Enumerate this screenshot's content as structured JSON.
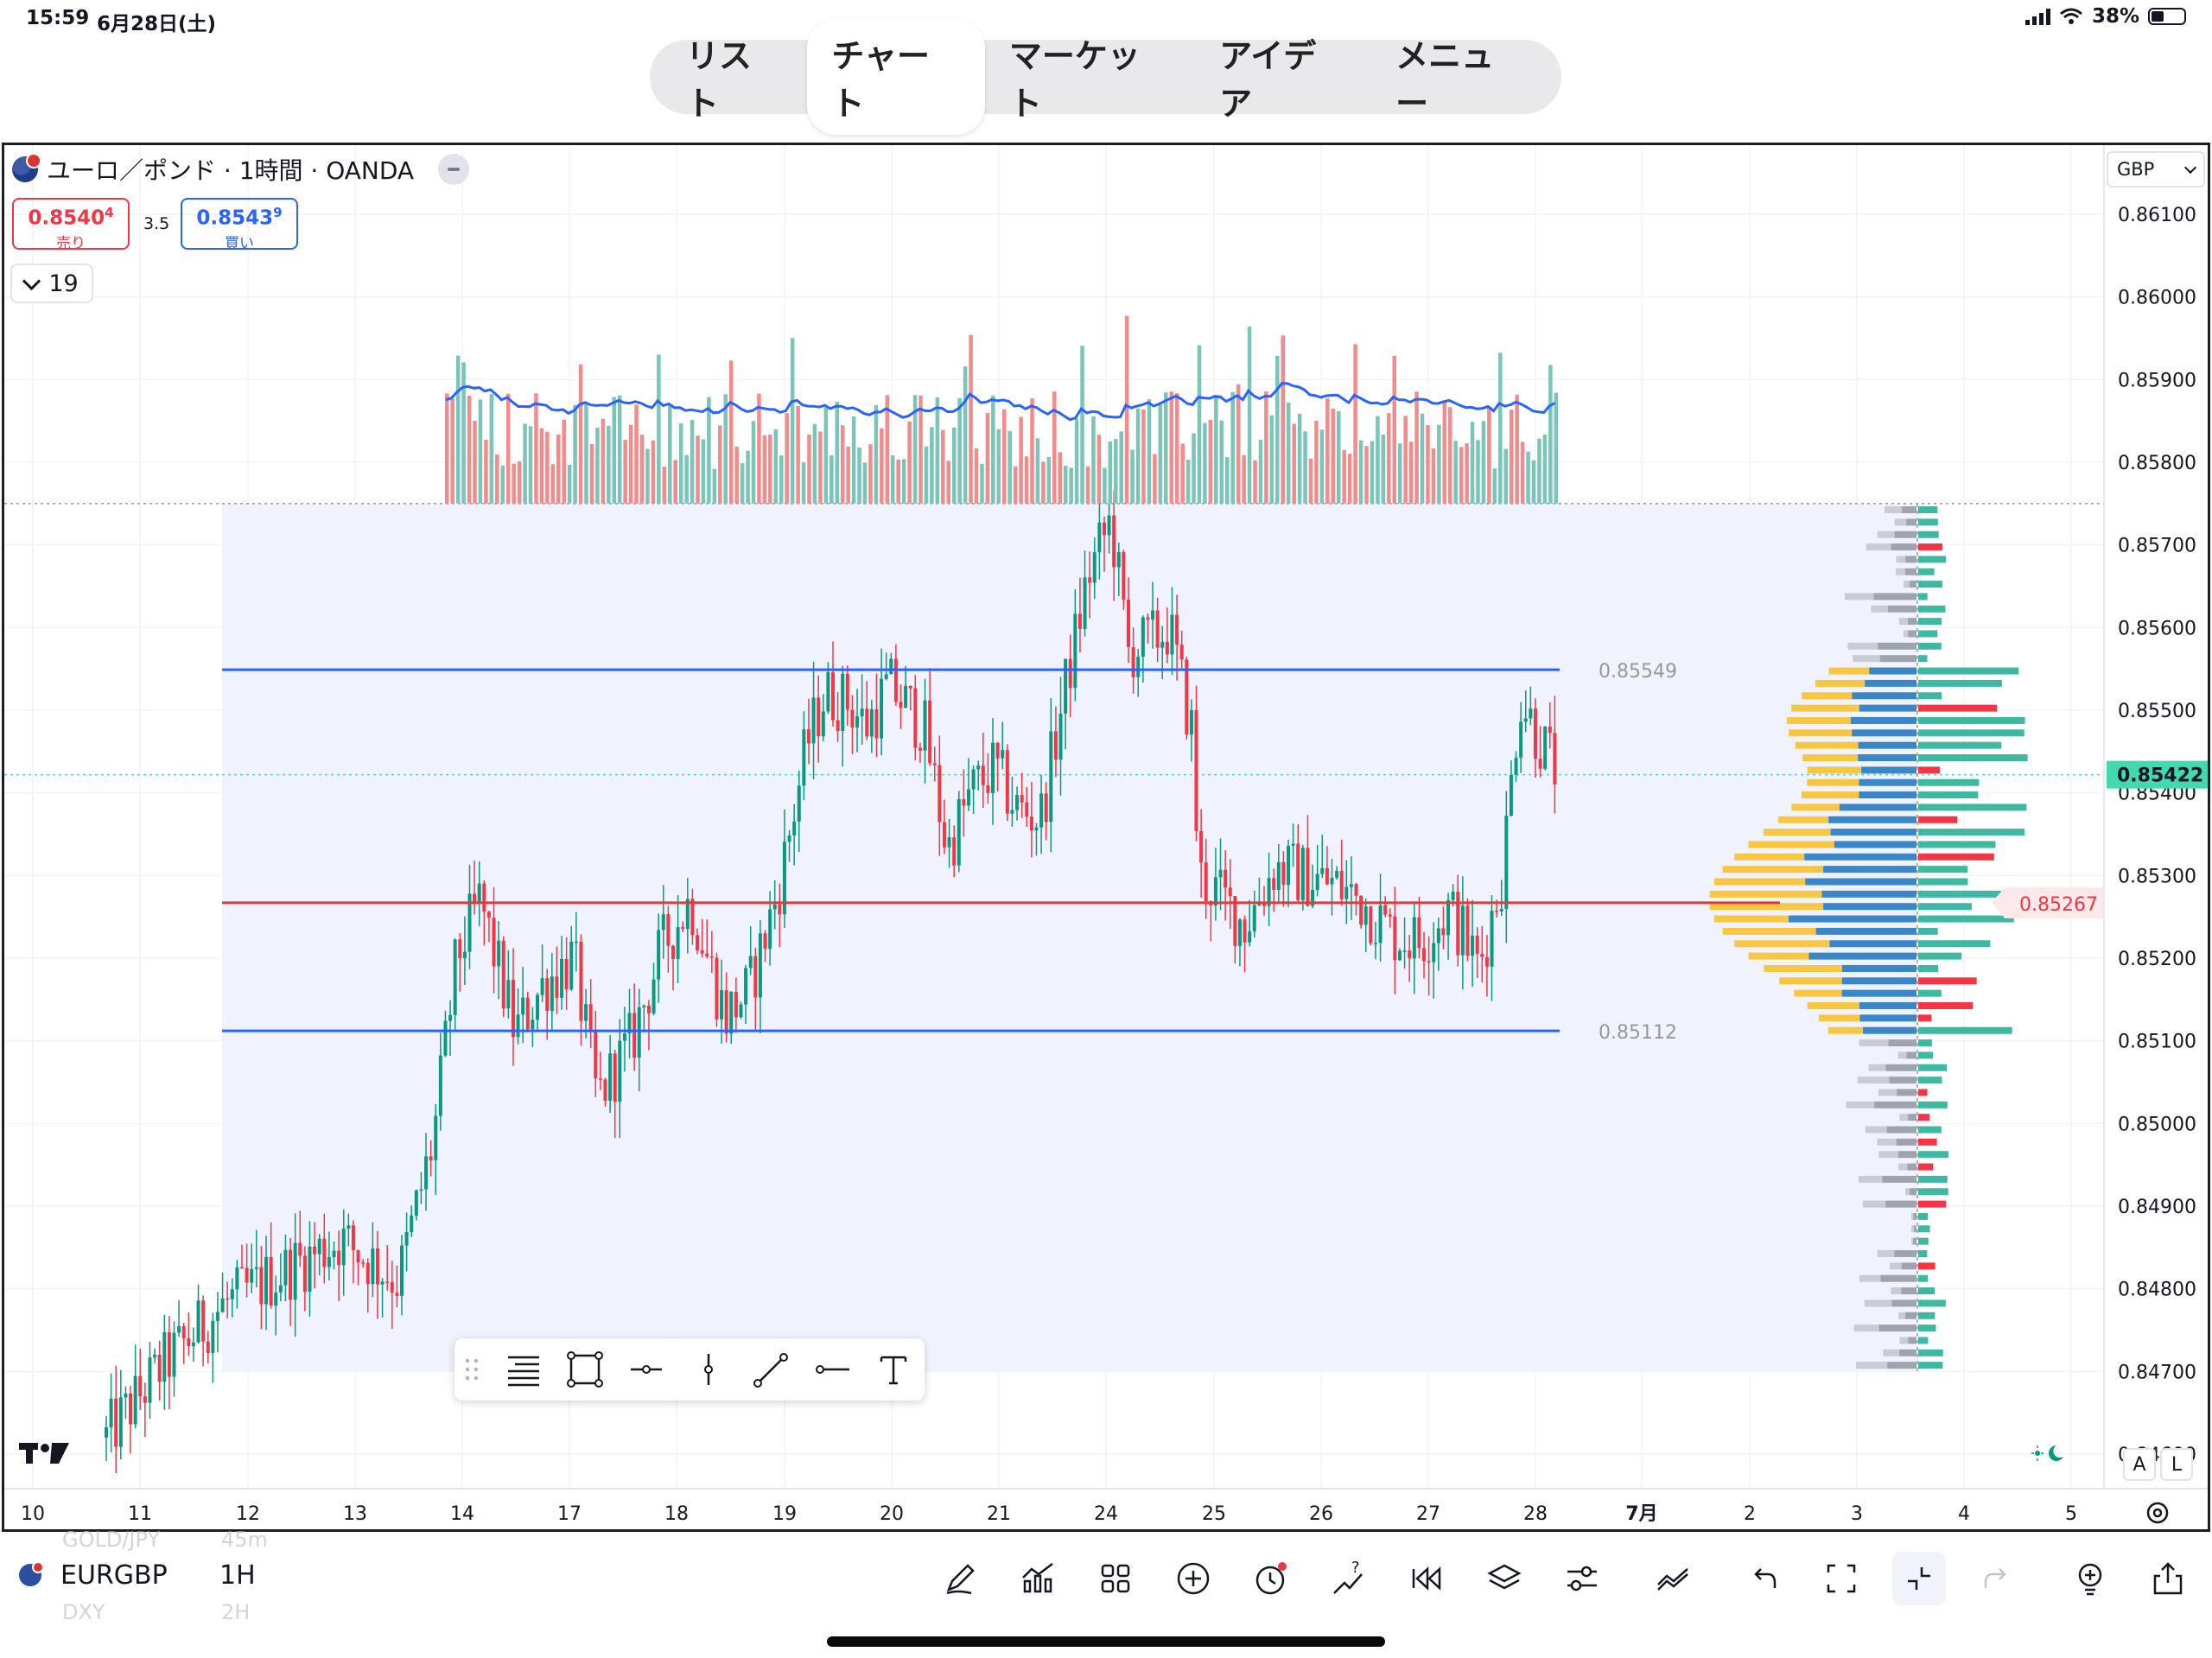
{
  "status_bar": {
    "time": "15:59",
    "date": "6月28日(土)",
    "battery": "38%"
  },
  "top_nav": {
    "tabs": [
      {
        "label": "リスト",
        "active": false
      },
      {
        "label": "チャート",
        "active": true
      },
      {
        "label": "マーケット",
        "active": false
      },
      {
        "label": "アイデア",
        "active": false
      },
      {
        "label": "メニュー",
        "active": false
      }
    ]
  },
  "legend": {
    "title": "ユーロ／ポンド · 1時間 · OANDA"
  },
  "trade": {
    "sell_price_main": "0.8540",
    "sell_price_sup": "4",
    "sell_label": "売り",
    "spread": "3.5",
    "buy_price_main": "0.8543",
    "buy_price_sup": "9",
    "buy_label": "買い"
  },
  "indicator_counter": "19",
  "currency": "GBP",
  "chart_data": {
    "type": "candlestick",
    "symbol": "EURGBP",
    "timeframe": "1H",
    "y_axis": {
      "range": [
        0.8455,
        0.862
      ],
      "ticks": [
        "0.86100",
        "0.86000",
        "0.85900",
        "0.85800",
        "0.85700",
        "0.85600",
        "0.85500",
        "0.85400",
        "0.85300",
        "0.85200",
        "0.85100",
        "0.85000",
        "0.84900",
        "0.84800",
        "0.84700",
        "0.84600"
      ]
    },
    "x_axis": {
      "ticks": [
        "10",
        "11",
        "12",
        "13",
        "14",
        "17",
        "18",
        "19",
        "20",
        "21",
        "24",
        "25",
        "26",
        "27",
        "28",
        "7月",
        "2",
        "3",
        "4",
        "5"
      ]
    },
    "current_price": "0.85422",
    "current_price_value": 0.85422,
    "price_path": [
      [
        0,
        0.8462
      ],
      [
        1,
        0.8471
      ],
      [
        2,
        0.8478
      ],
      [
        3,
        0.8482
      ],
      [
        4,
        0.8486
      ],
      [
        5,
        0.8481
      ],
      [
        5.6,
        0.8498
      ],
      [
        6.0,
        0.852
      ],
      [
        6.4,
        0.8527
      ],
      [
        7.0,
        0.8511
      ],
      [
        7.5,
        0.8517
      ],
      [
        8.0,
        0.852
      ],
      [
        8.4,
        0.8503
      ],
      [
        9.0,
        0.851
      ],
      [
        9.5,
        0.8521
      ],
      [
        10.0,
        0.8527
      ],
      [
        10.6,
        0.8513
      ],
      [
        11.0,
        0.8516
      ],
      [
        11.5,
        0.8528
      ],
      [
        12.0,
        0.8546
      ],
      [
        12.3,
        0.8552
      ],
      [
        12.7,
        0.8551
      ],
      [
        13.0,
        0.8548
      ],
      [
        13.4,
        0.8553
      ],
      [
        14.0,
        0.8548
      ],
      [
        14.4,
        0.8533
      ],
      [
        14.8,
        0.854
      ],
      [
        15.2,
        0.8543
      ],
      [
        15.6,
        0.8538
      ],
      [
        16.0,
        0.8537
      ],
      [
        16.4,
        0.8552
      ],
      [
        16.8,
        0.8566
      ],
      [
        17.2,
        0.8573
      ],
      [
        17.5,
        0.8557
      ],
      [
        17.8,
        0.8558
      ],
      [
        18.2,
        0.856
      ],
      [
        18.6,
        0.8547
      ],
      [
        18.7,
        0.853
      ],
      [
        19.0,
        0.8528
      ],
      [
        19.5,
        0.8524
      ],
      [
        20.0,
        0.8531
      ],
      [
        20.5,
        0.853
      ],
      [
        21.0,
        0.8529
      ],
      [
        21.5,
        0.8527
      ],
      [
        22.0,
        0.8523
      ],
      [
        22.5,
        0.8522
      ],
      [
        23.0,
        0.8526
      ],
      [
        23.5,
        0.8519
      ],
      [
        23.9,
        0.853
      ],
      [
        24.2,
        0.8552
      ],
      [
        24.5,
        0.8547
      ],
      [
        24.8,
        0.8543
      ]
    ],
    "volume_label": "volume bars",
    "horizontal_lines": [
      {
        "price": 0.85549,
        "label": "0.85549",
        "color": "#2962ff"
      },
      {
        "price": 0.85267,
        "label": "0.85267",
        "color": "#e53935"
      },
      {
        "price": 0.85112,
        "label": "0.85112",
        "color": "#2962ff"
      }
    ],
    "vrvp_range": [
      0.847,
      0.8575
    ]
  },
  "drawing_toolbar": {
    "tools": [
      "horizontal-lines",
      "rectangle",
      "horizontal-ray",
      "vertical-line",
      "trend-line",
      "extended-line",
      "text"
    ]
  },
  "bottom_bar": {
    "symbol": "EURGBP",
    "timeframe": "1H",
    "ghost_prev_symbol": "GOLD/JPY",
    "ghost_prev_tf": "45m",
    "ghost_next_symbol": "DXY",
    "ghost_next_tf": "2H"
  },
  "scale_buttons": {
    "auto": "A",
    "log": "L"
  },
  "colors": {
    "up": "#089981",
    "down": "#f23645",
    "accent": "#2962ff",
    "vol_up": "#7bc4b8",
    "vol_down": "#f28b8b",
    "vrvp_yellow": "#f7c744",
    "vrvp_blue": "#3a86c8"
  }
}
